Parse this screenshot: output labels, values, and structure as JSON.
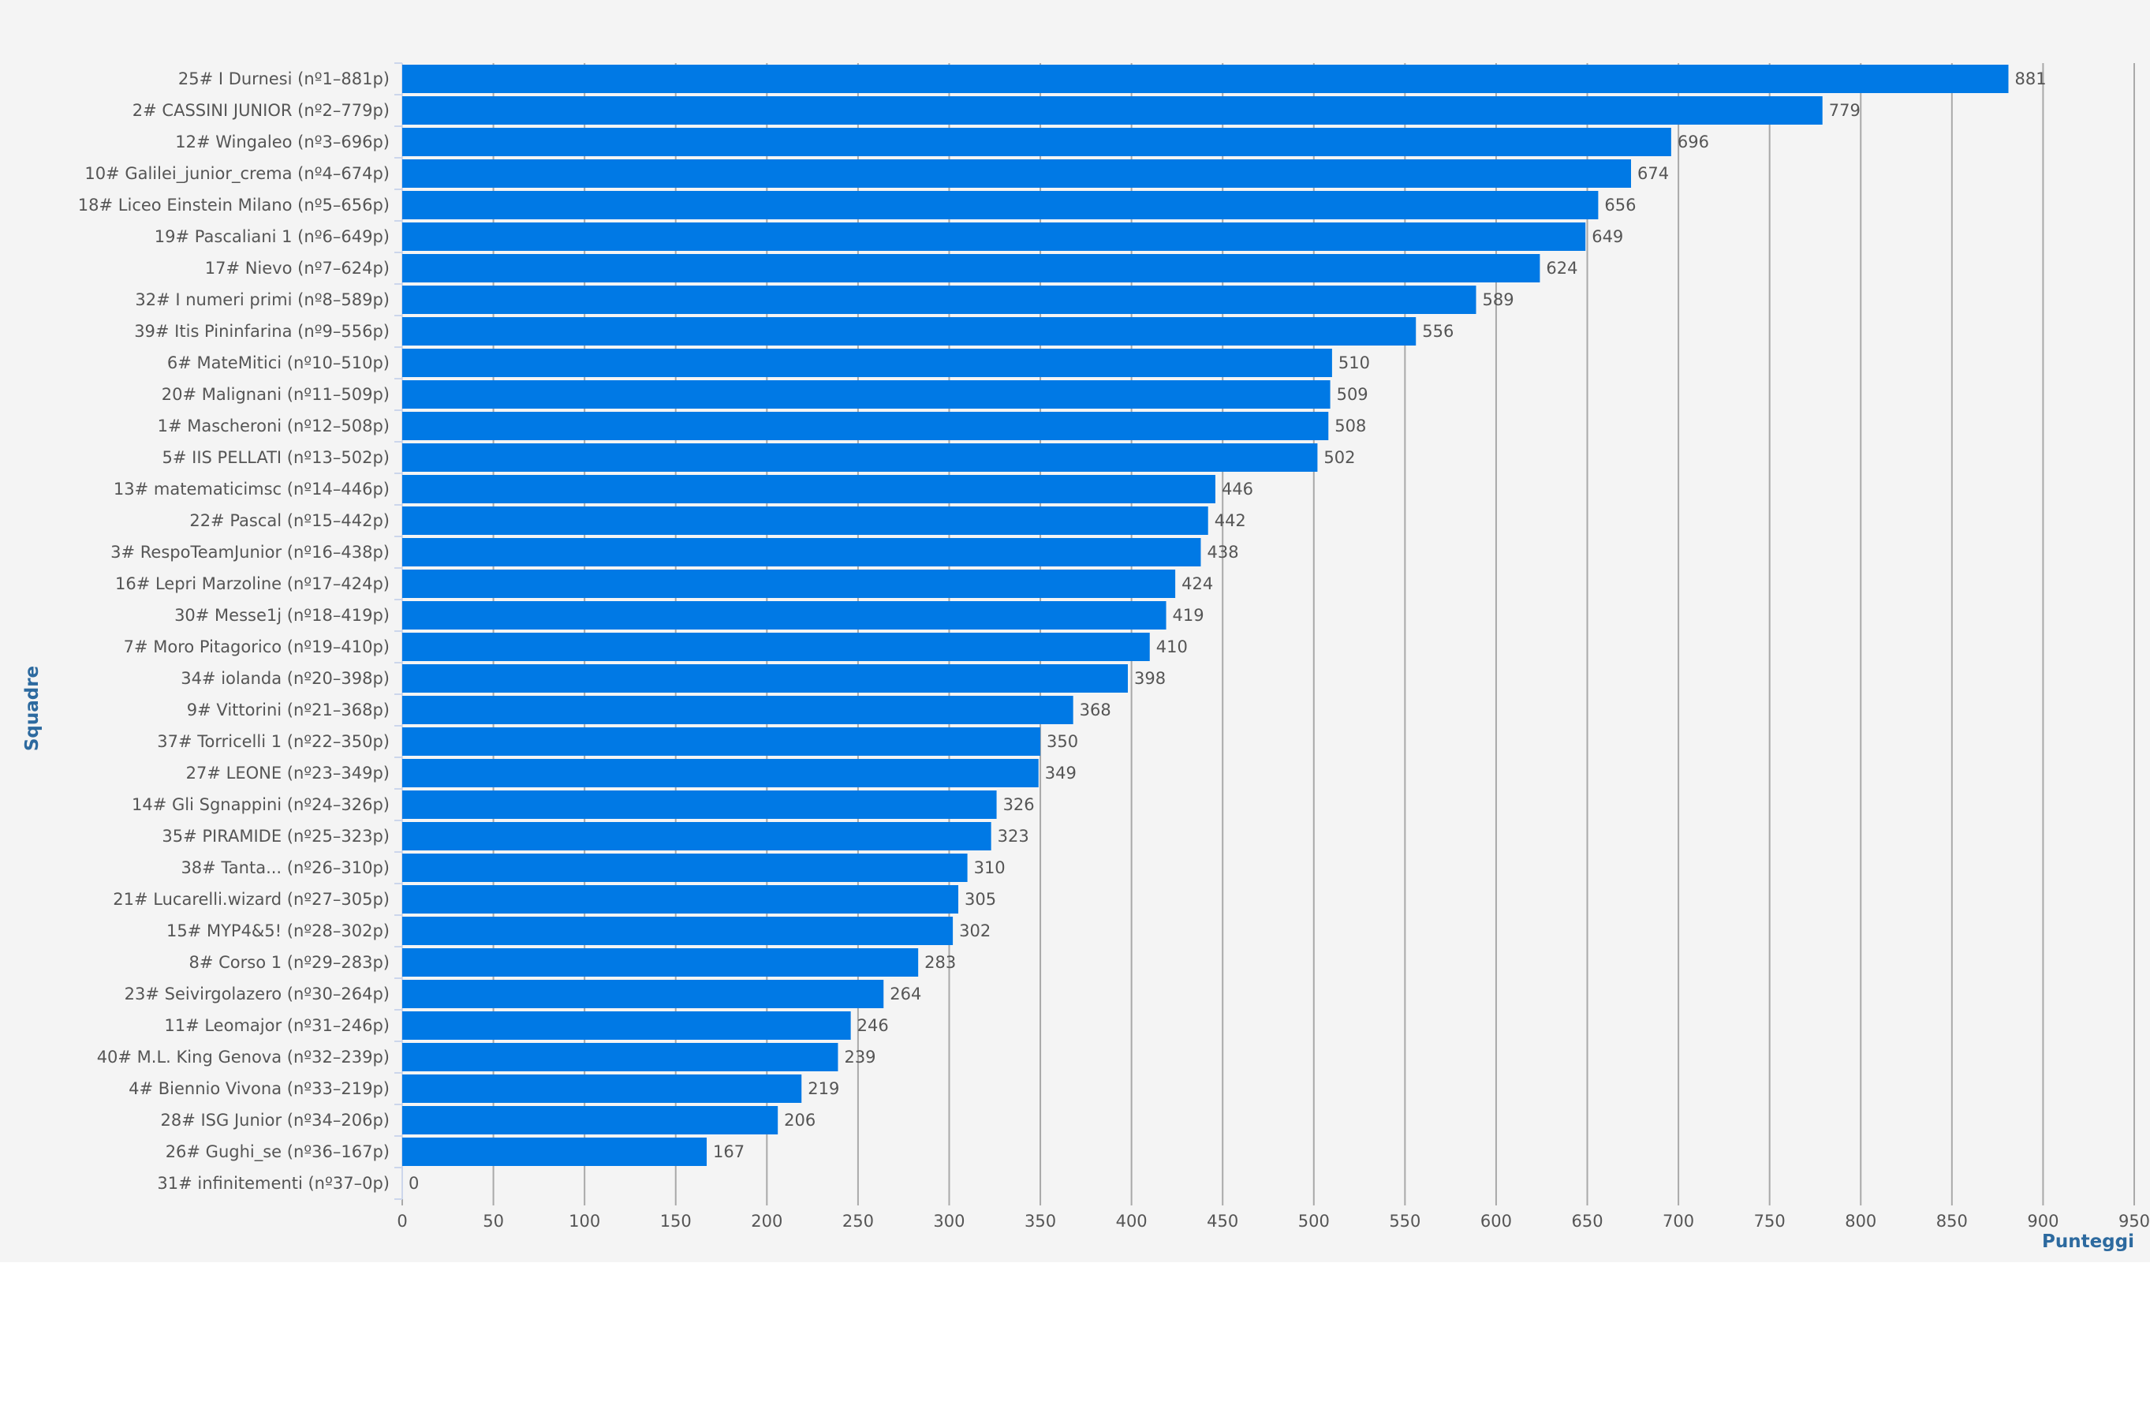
{
  "chart_data": {
    "type": "bar",
    "orientation": "horizontal",
    "xlabel": "Punteggi",
    "ylabel": "Squadre",
    "xlim": [
      0,
      950
    ],
    "x_ticks": [
      0,
      50,
      100,
      150,
      200,
      250,
      300,
      350,
      400,
      450,
      500,
      550,
      600,
      650,
      700,
      750,
      800,
      850,
      900,
      950
    ],
    "grid": true,
    "legend": "none",
    "bar_color": "#0079e5",
    "categories": [
      "25# I Durnesi (nº1–881p)",
      "2# CASSINI JUNIOR (nº2–779p)",
      "12# Wingaleo (nº3–696p)",
      "10# Galilei_junior_crema (nº4–674p)",
      "18# Liceo Einstein Milano (nº5–656p)",
      "19# Pascaliani 1 (nº6–649p)",
      "17# Nievo (nº7–624p)",
      "32# I numeri primi (nº8–589p)",
      "39# Itis Pininfarina (nº9–556p)",
      "6# MateMitici (nº10–510p)",
      "20# Malignani (nº11–509p)",
      "1# Mascheroni (nº12–508p)",
      "5# IIS PELLATI (nº13–502p)",
      "13# matematicimsc (nº14–446p)",
      "22# Pascal (nº15–442p)",
      "3# RespoTeamJunior (nº16–438p)",
      "16# Lepri Marzoline (nº17–424p)",
      "30# Messe1j (nº18–419p)",
      "7# Moro Pitagorico (nº19–410p)",
      "34# iolanda (nº20–398p)",
      "9# Vittorini (nº21–368p)",
      "37# Torricelli 1 (nº22–350p)",
      "27# LEONE (nº23–349p)",
      "14# Gli Sgnappini (nº24–326p)",
      "35# PIRAMIDE (nº25–323p)",
      "38# Tanta... (nº26–310p)",
      "21# Lucarelli.wizard (nº27–305p)",
      "15# MYP4&5! (nº28–302p)",
      "8# Corso 1 (nº29–283p)",
      "23# Seivirgolazero (nº30–264p)",
      "11# Leomajor (nº31–246p)",
      "40# M.L. King Genova (nº32–239p)",
      "4# Biennio Vivona (nº33–219p)",
      "28# ISG Junior (nº34–206p)",
      "26# Gughi_se (nº36–167p)",
      "31# infinitementi (nº37–0p)"
    ],
    "values": [
      881,
      779,
      696,
      674,
      656,
      649,
      624,
      589,
      556,
      510,
      509,
      508,
      502,
      446,
      442,
      438,
      424,
      419,
      410,
      398,
      368,
      350,
      349,
      326,
      323,
      310,
      305,
      302,
      283,
      264,
      246,
      239,
      219,
      206,
      167,
      0
    ]
  }
}
